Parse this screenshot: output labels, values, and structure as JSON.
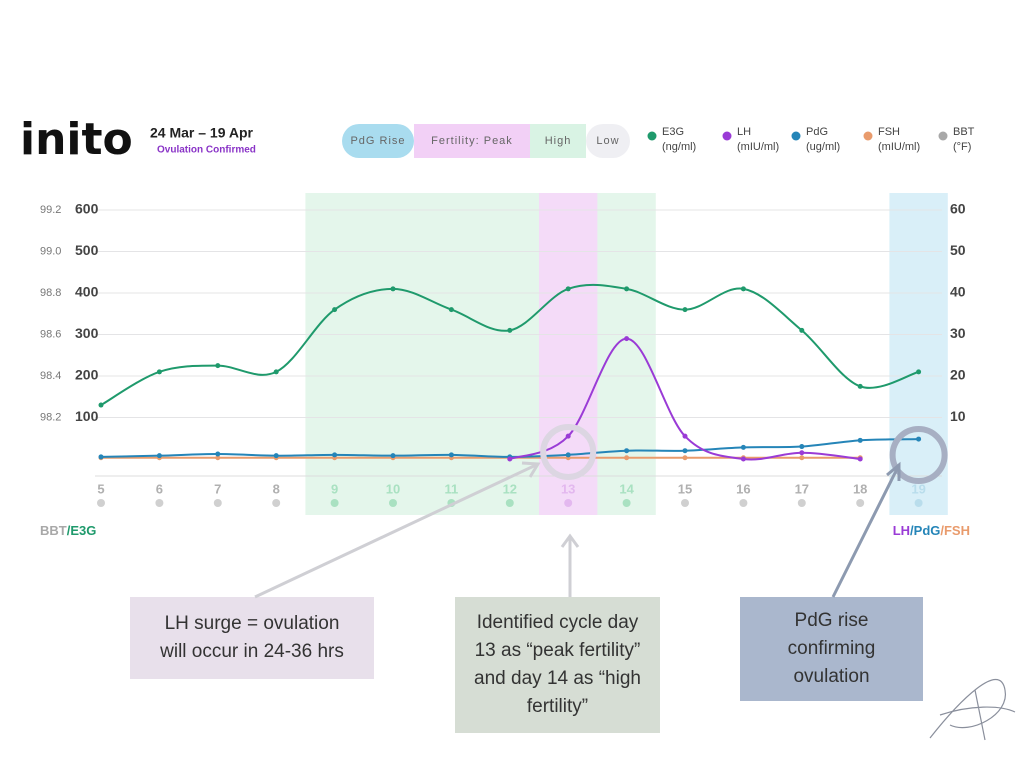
{
  "chart_data": {
    "type": "line",
    "brand": "inito",
    "date_range": "24 Mar – 19 Apr",
    "status": "Ovulation Confirmed",
    "fertility_legend": [
      {
        "label": "PdG Rise",
        "color": "#a9dcef"
      },
      {
        "label": "Fertility: Peak",
        "color": "#f2d0f6"
      },
      {
        "label": "High",
        "color": "#d9f3e4"
      },
      {
        "label": "Low",
        "color": "#efeff3"
      }
    ],
    "categories": [
      "5",
      "6",
      "7",
      "8",
      "9",
      "10",
      "11",
      "12",
      "13",
      "14",
      "15",
      "16",
      "17",
      "18",
      "19"
    ],
    "highlights": [
      {
        "from": "9",
        "to": "14",
        "fill": "#e4f6eb",
        "dot": "#a9e1c1"
      },
      {
        "from": "13",
        "to": "13",
        "fill": "#f4dbf8",
        "dot": "#e3b8ef"
      },
      {
        "from": "19",
        "to": "19",
        "fill": "#d9eff8",
        "dot": "#b9ddec"
      }
    ],
    "dot_color": "#d0d0d0",
    "series": [
      {
        "name": "E3G",
        "unit": "(ng/ml)",
        "color": "#1f9a6c",
        "axis": "y",
        "values": [
          130,
          210,
          225,
          210,
          360,
          410,
          360,
          310,
          410,
          410,
          360,
          410,
          310,
          175,
          210
        ]
      },
      {
        "name": "LH",
        "unit": "(mIU/ml)",
        "color": "#9a3bd6",
        "axis": "y2",
        "values": [
          null,
          null,
          null,
          null,
          null,
          null,
          null,
          0,
          5.5,
          29,
          5.5,
          0,
          1.5,
          0,
          null
        ]
      },
      {
        "name": "PdG",
        "unit": "(ug/ml)",
        "color": "#2585b8",
        "axis": "y2",
        "values": [
          0.5,
          0.8,
          1.2,
          0.8,
          1,
          0.8,
          1,
          0.5,
          1,
          2,
          2,
          2.8,
          3,
          4.5,
          4.8
        ]
      },
      {
        "name": "FSH",
        "unit": "(mIU/ml)",
        "color": "#e99b6c",
        "axis": "y2",
        "values": [
          0.3,
          0.3,
          0.3,
          0.3,
          0.3,
          0.3,
          0.3,
          0.3,
          0.3,
          0.3,
          0.3,
          0.3,
          0.3,
          0.3,
          null
        ]
      },
      {
        "name": "BBT",
        "unit": "(°F)",
        "color": "#a8a8a8",
        "axis": "y3"
      }
    ],
    "ylim": [
      0,
      600
    ],
    "yticks": [
      100,
      200,
      300,
      400,
      500,
      600
    ],
    "y2lim": [
      0,
      60
    ],
    "y2ticks": [
      10,
      20,
      30,
      40,
      50,
      60
    ],
    "y3lim": [
      98.0,
      99.2
    ],
    "y3ticks": [
      98.2,
      98.4,
      98.6,
      98.8,
      {
        "value": 99.0,
        "label": "99.0"
      },
      99.2
    ],
    "grid": true,
    "y_label_parts": [
      {
        "text": "BBT",
        "color": "#a8a8a8"
      },
      {
        "text": "/E3G",
        "color": "#1f9a6c"
      }
    ],
    "y2_label_parts": [
      {
        "text": "LH",
        "color": "#9a3bd6"
      },
      {
        "text": "/PdG",
        "color": "#2585b8"
      },
      {
        "text": "/FSH",
        "color": "#e99b6c"
      }
    ],
    "annotations": [
      {
        "lines": [
          "LH surge = ovulation",
          "will occur in 24-36 hrs"
        ],
        "color": "#e8e0eb"
      },
      {
        "lines": [
          "Identified cycle day",
          "13 as “peak fertility”",
          "and day 14 as “high",
          "fertility”"
        ],
        "color": "#d6ddd4"
      },
      {
        "lines": [
          "PdG rise",
          "confirming",
          "ovulation"
        ],
        "color": "#aab7cd"
      }
    ]
  }
}
